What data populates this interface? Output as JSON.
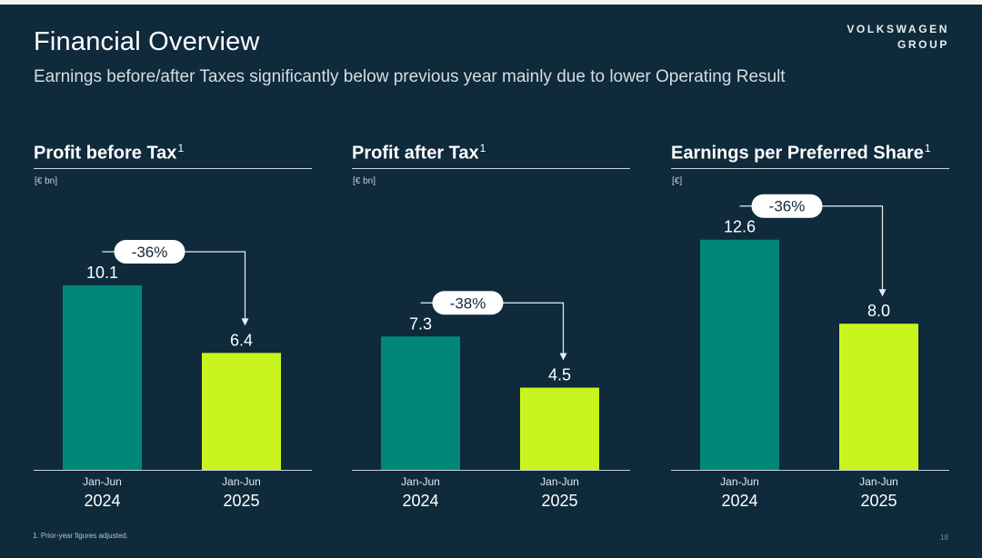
{
  "header": {
    "title": "Financial Overview",
    "subtitle": "Earnings before/after Taxes significantly below previous year mainly due to lower Operating Result",
    "logo_line1": "VOLKSWAGEN",
    "logo_line2": "GROUP"
  },
  "footer": {
    "footnote": "1. Prior-year figures adjusted.",
    "page": "18"
  },
  "colors": {
    "background": "#0e2a3b",
    "bar_prev": "#00877a",
    "bar_curr": "#c8f51e"
  },
  "panels": [
    {
      "title": "Profit before Tax",
      "sup": "1",
      "unit": "[€ bn]"
    },
    {
      "title": "Profit after Tax",
      "sup": "1",
      "unit": "[€ bn]"
    },
    {
      "title": "Earnings per Preferred Share",
      "sup": "1",
      "unit": "[€]"
    }
  ],
  "chart_data": [
    {
      "type": "bar",
      "title": "Profit before Tax",
      "unit": "[€ bn]",
      "categories": [
        [
          "Jan-Jun",
          "2024"
        ],
        [
          "Jan-Jun",
          "2025"
        ]
      ],
      "values": [
        10.1,
        6.4
      ],
      "labels": [
        "10.1",
        "6.4"
      ],
      "change": "-36%",
      "ylim": [
        0,
        14
      ],
      "grid": false
    },
    {
      "type": "bar",
      "title": "Profit after Tax",
      "unit": "[€ bn]",
      "categories": [
        [
          "Jan-Jun",
          "2024"
        ],
        [
          "Jan-Jun",
          "2025"
        ]
      ],
      "values": [
        7.3,
        4.5
      ],
      "labels": [
        "7.3",
        "4.5"
      ],
      "change": "-38%",
      "ylim": [
        0,
        14
      ],
      "grid": false
    },
    {
      "type": "bar",
      "title": "Earnings per Preferred Share",
      "unit": "[€]",
      "categories": [
        [
          "Jan-Jun",
          "2024"
        ],
        [
          "Jan-Jun",
          "2025"
        ]
      ],
      "values": [
        12.6,
        8.0
      ],
      "labels": [
        "12.6",
        "8.0"
      ],
      "change": "-36%",
      "ylim": [
        0,
        17
      ],
      "grid": false
    }
  ]
}
